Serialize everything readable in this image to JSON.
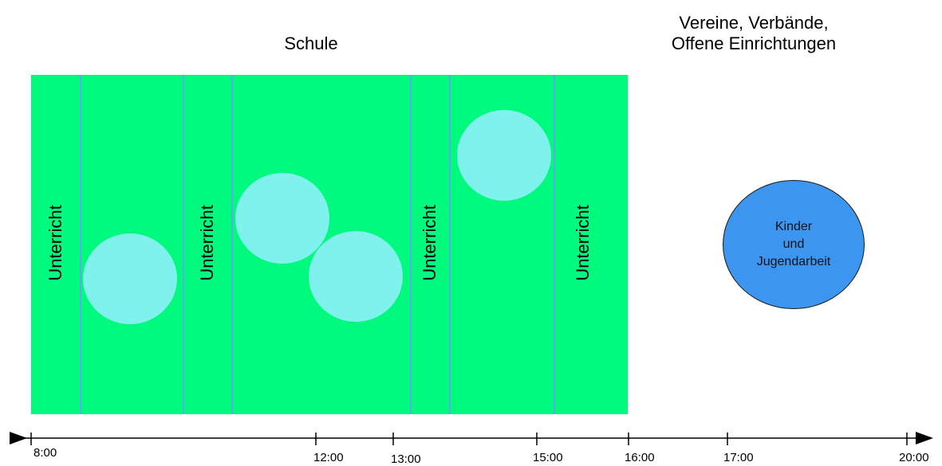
{
  "titles": {
    "school": "Schule",
    "clubs": [
      "Vereine, Verbände,",
      "Offene Einrichtungen"
    ]
  },
  "lesson_label": "Unterricht",
  "lessons": [
    "Unterricht",
    "Unterricht",
    "Unterricht",
    "Unterricht"
  ],
  "activity": {
    "lines": [
      "Kinder",
      "und",
      "Jugendarbeit"
    ]
  },
  "timeline": {
    "ticks": [
      "8:00",
      "12:00",
      "13:00",
      "15:00",
      "16:00",
      "17:00",
      "20:00"
    ]
  },
  "colors": {
    "school_block": "#00fa7d",
    "divider": "#5ca8e8",
    "circle": "#80f2ee",
    "activity": "#3c96f0"
  }
}
